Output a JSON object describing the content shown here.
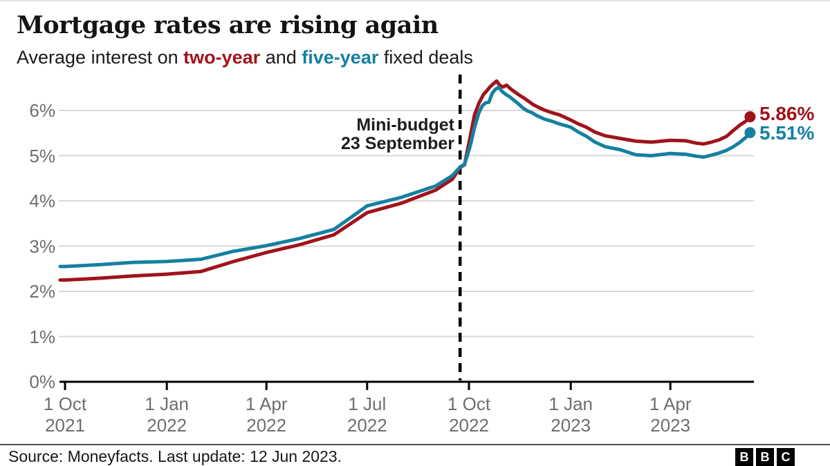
{
  "header": {
    "title": "Mortgage rates are rising again",
    "subtitle_parts": [
      {
        "text": "Average interest on "
      },
      {
        "text": "two-year"
      },
      {
        "text": " and "
      },
      {
        "text": "five-year"
      },
      {
        "text": " fixed deals"
      }
    ]
  },
  "annotation": {
    "line1": "Mini-budget",
    "line2": "23 September",
    "event_day": 357
  },
  "end_labels": {
    "two_year": "5.86%",
    "five_year": "5.51%"
  },
  "footer": {
    "source": "Source: Moneyfacts. Last update: 12 Jun 2023.",
    "logo_letters": [
      "B",
      "B",
      "C"
    ]
  },
  "colors": {
    "two_year": "#a0131c",
    "five_year": "#1580a1",
    "grid": "#d8d8d8",
    "axis": "#000000",
    "dashed_line": "#000000",
    "tick_label": "#6e6e6e",
    "annotation": "#1d1d1d",
    "title": "#141414",
    "subtitle": "#1a1a1a",
    "source": "#161616",
    "divider": "#4f4f4f",
    "logo_bg": "#000000",
    "logo_text": "#ffffff"
  },
  "chart_data": {
    "type": "line",
    "title": "Mortgage rates are rising again",
    "subtitle": "Average interest on two-year and five-year fixed deals",
    "x_unit": "days since 1 Oct 2021",
    "ylim": [
      0,
      6.9
    ],
    "grid": true,
    "y_ticks": [
      {
        "value": 0,
        "label": "0%"
      },
      {
        "value": 1,
        "label": "1%"
      },
      {
        "value": 2,
        "label": "2%"
      },
      {
        "value": 3,
        "label": "3%"
      },
      {
        "value": 4,
        "label": "4%"
      },
      {
        "value": 5,
        "label": "5%"
      },
      {
        "value": 6,
        "label": "6%"
      }
    ],
    "x_ticks": [
      {
        "day": 0,
        "line1": "1 Oct",
        "line2": "2021"
      },
      {
        "day": 92,
        "line1": "1 Jan",
        "line2": "2022"
      },
      {
        "day": 182,
        "line1": "1 Apr",
        "line2": "2022"
      },
      {
        "day": 273,
        "line1": "1 Jul",
        "line2": "2022"
      },
      {
        "day": 365,
        "line1": "1 Oct",
        "line2": "2022"
      },
      {
        "day": 457,
        "line1": "1 Jan",
        "line2": "2023"
      },
      {
        "day": 547,
        "line1": "1 Apr",
        "line2": "2023"
      }
    ],
    "event_line": {
      "day": 357,
      "label": "Mini-budget 23 September"
    },
    "series": [
      {
        "name": "two-year",
        "end_label": "5.86%",
        "last_value": 5.86,
        "points": [
          [
            0,
            2.25
          ],
          [
            31,
            2.29
          ],
          [
            61,
            2.34
          ],
          [
            92,
            2.38
          ],
          [
            123,
            2.44
          ],
          [
            151,
            2.65
          ],
          [
            182,
            2.86
          ],
          [
            212,
            3.03
          ],
          [
            243,
            3.25
          ],
          [
            273,
            3.74
          ],
          [
            304,
            3.95
          ],
          [
            335,
            4.24
          ],
          [
            350,
            4.48
          ],
          [
            357,
            4.74
          ],
          [
            361,
            4.8
          ],
          [
            366,
            5.4
          ],
          [
            370,
            5.9
          ],
          [
            374,
            6.16
          ],
          [
            378,
            6.35
          ],
          [
            381,
            6.43
          ],
          [
            384,
            6.52
          ],
          [
            387,
            6.59
          ],
          [
            390,
            6.65
          ],
          [
            393,
            6.55
          ],
          [
            396,
            6.52
          ],
          [
            399,
            6.56
          ],
          [
            403,
            6.47
          ],
          [
            407,
            6.4
          ],
          [
            411,
            6.33
          ],
          [
            415,
            6.27
          ],
          [
            419,
            6.2
          ],
          [
            423,
            6.13
          ],
          [
            427,
            6.08
          ],
          [
            433,
            6.01
          ],
          [
            440,
            5.95
          ],
          [
            447,
            5.9
          ],
          [
            457,
            5.79
          ],
          [
            464,
            5.7
          ],
          [
            471,
            5.63
          ],
          [
            479,
            5.52
          ],
          [
            488,
            5.44
          ],
          [
            502,
            5.38
          ],
          [
            516,
            5.32
          ],
          [
            530,
            5.3
          ],
          [
            547,
            5.34
          ],
          [
            561,
            5.33
          ],
          [
            570,
            5.28
          ],
          [
            577,
            5.26
          ],
          [
            584,
            5.3
          ],
          [
            591,
            5.35
          ],
          [
            598,
            5.43
          ],
          [
            604,
            5.56
          ],
          [
            610,
            5.68
          ],
          [
            615,
            5.76
          ],
          [
            619,
            5.86
          ]
        ]
      },
      {
        "name": "five-year",
        "end_label": "5.51%",
        "last_value": 5.51,
        "points": [
          [
            0,
            2.55
          ],
          [
            31,
            2.59
          ],
          [
            61,
            2.64
          ],
          [
            92,
            2.66
          ],
          [
            123,
            2.71
          ],
          [
            151,
            2.88
          ],
          [
            182,
            3.01
          ],
          [
            212,
            3.17
          ],
          [
            243,
            3.37
          ],
          [
            273,
            3.89
          ],
          [
            304,
            4.08
          ],
          [
            335,
            4.33
          ],
          [
            350,
            4.56
          ],
          [
            357,
            4.75
          ],
          [
            361,
            4.81
          ],
          [
            366,
            5.2
          ],
          [
            370,
            5.62
          ],
          [
            374,
            5.95
          ],
          [
            377,
            6.1
          ],
          [
            380,
            6.17
          ],
          [
            383,
            6.18
          ],
          [
            386,
            6.38
          ],
          [
            389,
            6.47
          ],
          [
            392,
            6.51
          ],
          [
            395,
            6.42
          ],
          [
            398,
            6.36
          ],
          [
            402,
            6.3
          ],
          [
            406,
            6.22
          ],
          [
            410,
            6.14
          ],
          [
            414,
            6.05
          ],
          [
            418,
            5.99
          ],
          [
            422,
            5.95
          ],
          [
            426,
            5.89
          ],
          [
            433,
            5.81
          ],
          [
            440,
            5.76
          ],
          [
            447,
            5.7
          ],
          [
            457,
            5.63
          ],
          [
            464,
            5.52
          ],
          [
            471,
            5.43
          ],
          [
            479,
            5.3
          ],
          [
            488,
            5.2
          ],
          [
            502,
            5.13
          ],
          [
            516,
            5.02
          ],
          [
            530,
            5.0
          ],
          [
            547,
            5.05
          ],
          [
            561,
            5.03
          ],
          [
            570,
            4.99
          ],
          [
            577,
            4.97
          ],
          [
            584,
            5.01
          ],
          [
            591,
            5.06
          ],
          [
            598,
            5.12
          ],
          [
            604,
            5.2
          ],
          [
            610,
            5.3
          ],
          [
            615,
            5.4
          ],
          [
            619,
            5.51
          ]
        ]
      }
    ]
  }
}
